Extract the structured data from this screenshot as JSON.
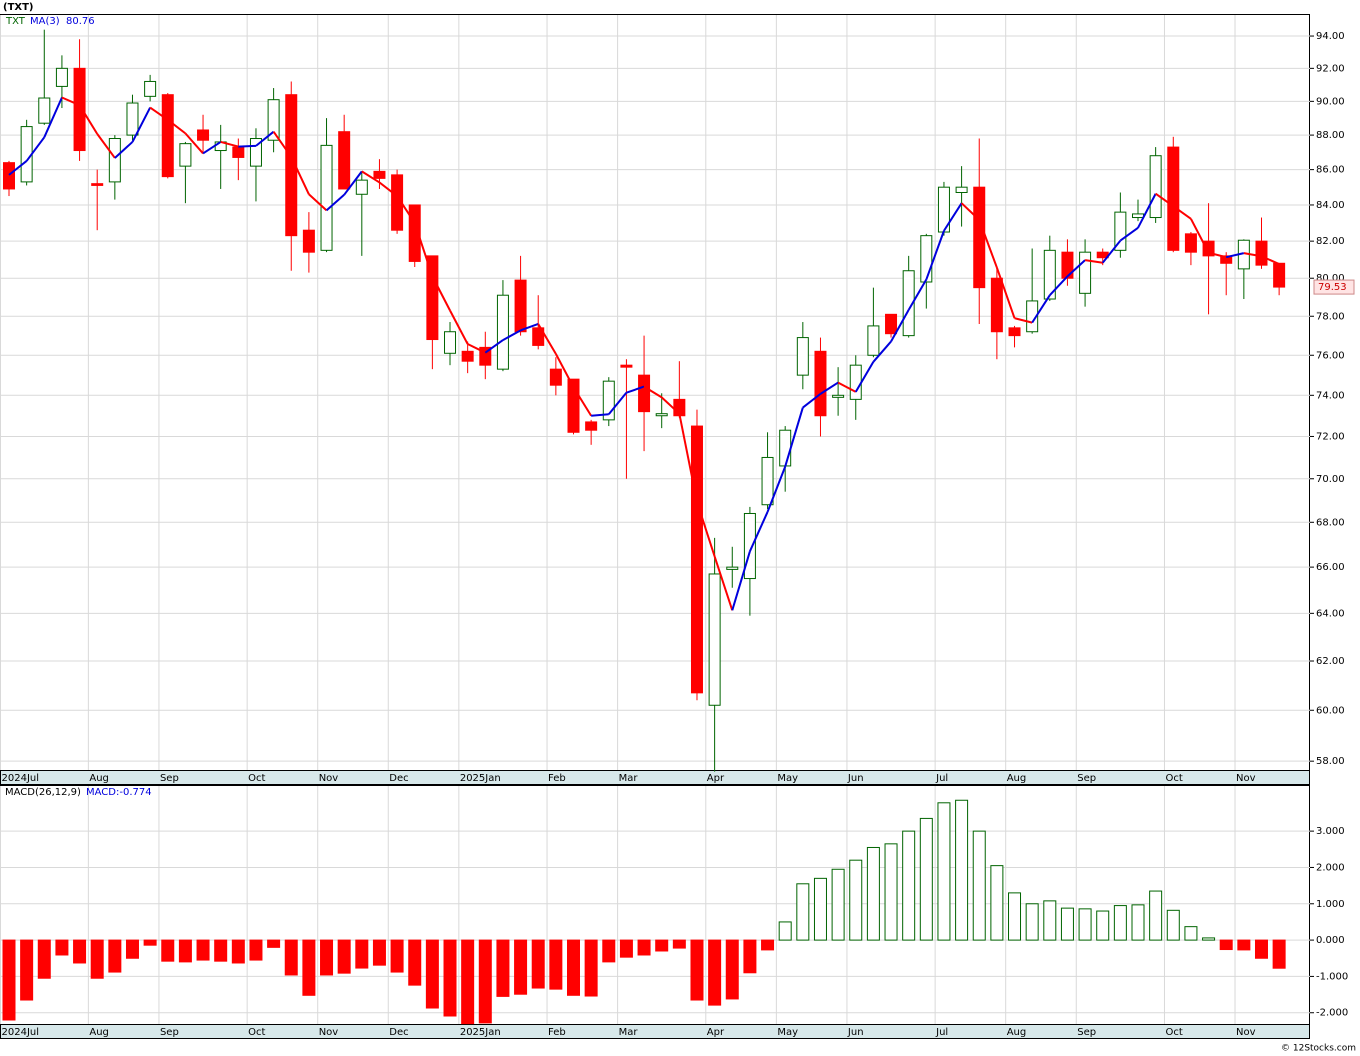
{
  "chart_data": [
    {
      "type": "candlestick",
      "title": "(TXT)",
      "symbol": "TXT",
      "log_scale": true,
      "grid": true,
      "up_color": "#006400",
      "down_color": "#ff0000",
      "xlim": [
        -0.51,
        73.75
      ],
      "xticks": [
        {
          "value": -0.5,
          "label": "2024Jul"
        },
        {
          "value": 4.5,
          "label": "Aug"
        },
        {
          "value": 8.5,
          "label": "Sep"
        },
        {
          "value": 13.5,
          "label": "Oct"
        },
        {
          "value": 17.5,
          "label": "Nov"
        },
        {
          "value": 21.5,
          "label": "Dec"
        },
        {
          "value": 25.5,
          "label": "2025Jan"
        },
        {
          "value": 30.5,
          "label": "Feb"
        },
        {
          "value": 34.5,
          "label": "Mar"
        },
        {
          "value": 39.5,
          "label": "Apr"
        },
        {
          "value": 43.5,
          "label": "May"
        },
        {
          "value": 47.5,
          "label": "Jun"
        },
        {
          "value": 52.5,
          "label": "Jul"
        },
        {
          "value": 56.5,
          "label": "Aug"
        },
        {
          "value": 60.5,
          "label": "Sep"
        },
        {
          "value": 65.5,
          "label": "Oct"
        },
        {
          "value": 69.5,
          "label": "Nov"
        }
      ],
      "ylim": [
        57.66,
        95.39
      ],
      "yticks": [
        {
          "value": 58,
          "label": "58.00"
        },
        {
          "value": 60,
          "label": "60.00"
        },
        {
          "value": 62,
          "label": "62.00"
        },
        {
          "value": 64,
          "label": "64.00"
        },
        {
          "value": 66,
          "label": "66.00"
        },
        {
          "value": 68,
          "label": "68.00"
        },
        {
          "value": 70,
          "label": "70.00"
        },
        {
          "value": 72,
          "label": "72.00"
        },
        {
          "value": 74,
          "label": "74.00"
        },
        {
          "value": 76,
          "label": "76.00"
        },
        {
          "value": 78,
          "label": "78.00"
        },
        {
          "value": 80,
          "label": "80.00"
        },
        {
          "value": 82,
          "label": "82.00"
        },
        {
          "value": 84,
          "label": "84.00"
        },
        {
          "value": 86,
          "label": "86.00"
        },
        {
          "value": 88,
          "label": "88.00"
        },
        {
          "value": 90,
          "label": "90.00"
        },
        {
          "value": 92,
          "label": "92.00"
        },
        {
          "value": 94,
          "label": "94.00"
        }
      ],
      "open": [
        86.4,
        85.3,
        88.7,
        90.9,
        92.0,
        85.2,
        85.3,
        88.0,
        90.3,
        90.4,
        86.2,
        88.3,
        87.1,
        87.3,
        86.2,
        87.7,
        90.4,
        82.6,
        81.5,
        88.2,
        84.6,
        85.9,
        85.7,
        84.0,
        81.2,
        76.1,
        76.2,
        76.4,
        75.3,
        79.9,
        77.4,
        75.3,
        74.8,
        72.7,
        72.8,
        75.5,
        75.0,
        73.0,
        73.8,
        72.5,
        60.2,
        65.9,
        65.5,
        68.8,
        70.6,
        75.0,
        76.2,
        73.9,
        73.8,
        76.0,
        78.1,
        77.0,
        79.8,
        82.5,
        84.7,
        85.0,
        80.0,
        77.4,
        77.2,
        78.9,
        81.4,
        79.2,
        81.4,
        81.5,
        83.3,
        83.3,
        87.3,
        82.4,
        82.0,
        81.2,
        80.5,
        82.0,
        80.8
      ],
      "high": [
        86.5,
        88.9,
        94.4,
        92.8,
        93.8,
        86.0,
        88.0,
        90.4,
        91.6,
        90.5,
        87.6,
        89.2,
        88.6,
        87.8,
        88.4,
        90.8,
        91.2,
        83.6,
        89.0,
        89.2,
        85.9,
        86.6,
        86.0,
        84.0,
        81.2,
        77.7,
        76.7,
        77.2,
        79.9,
        81.2,
        79.1,
        75.9,
        74.8,
        72.8,
        74.9,
        75.8,
        77.0,
        74.1,
        75.7,
        73.3,
        67.3,
        66.9,
        68.7,
        72.2,
        72.5,
        77.7,
        76.9,
        75.4,
        76.0,
        79.5,
        78.1,
        81.2,
        82.4,
        85.3,
        86.2,
        87.8,
        80.6,
        77.5,
        81.6,
        82.3,
        82.1,
        82.1,
        81.6,
        84.7,
        84.3,
        87.3,
        87.9,
        82.5,
        84.1,
        81.4,
        82.1,
        83.3,
        80.8
      ],
      "low": [
        84.5,
        85.1,
        88.6,
        89.6,
        86.5,
        82.6,
        84.3,
        87.7,
        90.0,
        85.5,
        84.1,
        87.0,
        84.9,
        85.4,
        84.2,
        87.0,
        80.4,
        80.3,
        81.4,
        84.9,
        81.2,
        84.9,
        82.4,
        80.6,
        75.3,
        75.5,
        75.1,
        74.8,
        75.2,
        77.0,
        76.3,
        74.0,
        72.1,
        71.6,
        72.5,
        70.0,
        71.3,
        72.4,
        72.9,
        60.4,
        57.6,
        65.1,
        63.9,
        68.6,
        69.4,
        74.3,
        72.0,
        73.0,
        72.8,
        75.9,
        76.9,
        76.9,
        78.4,
        82.3,
        82.8,
        77.6,
        75.8,
        76.4,
        77.1,
        78.8,
        79.6,
        78.5,
        80.7,
        81.1,
        83.1,
        83.0,
        81.4,
        80.7,
        78.1,
        79.1,
        78.9,
        80.5,
        79.1
      ],
      "close": [
        84.9,
        88.5,
        90.2,
        92.0,
        87.1,
        85.1,
        87.8,
        89.9,
        91.2,
        85.6,
        87.5,
        87.7,
        87.6,
        86.7,
        87.8,
        90.1,
        82.3,
        81.4,
        87.4,
        84.9,
        85.4,
        85.5,
        82.6,
        80.9,
        76.8,
        77.2,
        75.7,
        75.5,
        79.1,
        77.2,
        76.5,
        74.5,
        72.2,
        72.3,
        74.7,
        75.4,
        73.2,
        73.1,
        73.0,
        60.7,
        65.7,
        66.0,
        68.4,
        71.0,
        72.3,
        76.9,
        73.0,
        74.0,
        75.5,
        77.5,
        77.1,
        80.4,
        82.3,
        85.0,
        85.0,
        79.5,
        77.2,
        77.0,
        78.8,
        81.5,
        80.0,
        81.4,
        81.1,
        83.6,
        83.5,
        86.8,
        81.5,
        81.4,
        81.2,
        80.8,
        82.05,
        80.7,
        79.53
      ],
      "ma": {
        "name": "MA(3)",
        "up_color": "#0000dd",
        "down_color": "#ff0000",
        "last_value": 80.76,
        "values": [
          85.7,
          86.5,
          87.87,
          90.23,
          89.77,
          88.07,
          86.67,
          87.6,
          89.63,
          88.9,
          88.1,
          86.93,
          87.6,
          87.33,
          87.37,
          88.2,
          86.73,
          84.6,
          83.7,
          84.57,
          85.9,
          85.27,
          84.5,
          83.0,
          80.1,
          78.3,
          76.57,
          76.13,
          76.77,
          77.27,
          77.6,
          76.07,
          74.4,
          73.0,
          73.07,
          74.13,
          74.43,
          73.9,
          73.1,
          68.93,
          66.47,
          64.13,
          66.7,
          68.47,
          70.57,
          73.4,
          74.07,
          74.63,
          74.17,
          75.67,
          76.7,
          78.33,
          79.93,
          82.57,
          84.1,
          83.17,
          80.57,
          77.9,
          77.67,
          79.1,
          80.1,
          80.97,
          80.83,
          82.03,
          82.73,
          84.63,
          83.93,
          83.23,
          81.37,
          81.13,
          81.35,
          81.18,
          80.76
        ]
      }
    },
    {
      "type": "histogram",
      "name": "MACD(26,12,9)",
      "value_label": "MACD:-0.774",
      "grid": true,
      "pos_color": "#006400",
      "neg_color": "#ff0000",
      "xlim": [
        -0.51,
        73.75
      ],
      "xticks": [
        {
          "value": -0.5,
          "label": "2024Jul"
        },
        {
          "value": 4.5,
          "label": "Aug"
        },
        {
          "value": 8.5,
          "label": "Sep"
        },
        {
          "value": 13.5,
          "label": "Oct"
        },
        {
          "value": 17.5,
          "label": "Nov"
        },
        {
          "value": 21.5,
          "label": "Dec"
        },
        {
          "value": 25.5,
          "label": "2025Jan"
        },
        {
          "value": 30.5,
          "label": "Feb"
        },
        {
          "value": 34.5,
          "label": "Mar"
        },
        {
          "value": 39.5,
          "label": "Apr"
        },
        {
          "value": 43.5,
          "label": "May"
        },
        {
          "value": 47.5,
          "label": "Jun"
        },
        {
          "value": 52.5,
          "label": "Jul"
        },
        {
          "value": 56.5,
          "label": "Aug"
        },
        {
          "value": 60.5,
          "label": "Sep"
        },
        {
          "value": 65.5,
          "label": "Oct"
        },
        {
          "value": 69.5,
          "label": "Nov"
        }
      ],
      "ylim": [
        -2.31,
        4.27
      ],
      "yticks": [
        {
          "value": -2,
          "label": "-2.000"
        },
        {
          "value": -1,
          "label": "-1.000"
        },
        {
          "value": 0,
          "label": "0.000"
        },
        {
          "value": 1,
          "label": "1.000"
        },
        {
          "value": 2,
          "label": "2.000"
        },
        {
          "value": 3,
          "label": "3.000"
        }
      ],
      "values": [
        -2.2,
        -1.65,
        -1.05,
        -0.41,
        -0.63,
        -1.05,
        -0.88,
        -0.5,
        -0.14,
        -0.58,
        -0.6,
        -0.55,
        -0.58,
        -0.63,
        -0.55,
        -0.2,
        -0.96,
        -1.52,
        -0.96,
        -0.91,
        -0.77,
        -0.69,
        -0.88,
        -1.24,
        -1.87,
        -2.09,
        -2.3,
        -2.28,
        -1.55,
        -1.49,
        -1.32,
        -1.35,
        -1.52,
        -1.54,
        -0.6,
        -0.47,
        -0.41,
        -0.3,
        -0.22,
        -1.65,
        -1.79,
        -1.62,
        -0.9,
        -0.27,
        0.5,
        1.55,
        1.7,
        1.95,
        2.2,
        2.55,
        2.65,
        3.0,
        3.35,
        3.78,
        3.85,
        3.0,
        2.05,
        1.3,
        1.0,
        1.08,
        0.88,
        0.86,
        0.8,
        0.95,
        0.97,
        1.35,
        0.82,
        0.37,
        0.06,
        -0.26,
        -0.27,
        -0.5,
        -0.774
      ]
    }
  ],
  "footer": "© 12Stocks.com"
}
